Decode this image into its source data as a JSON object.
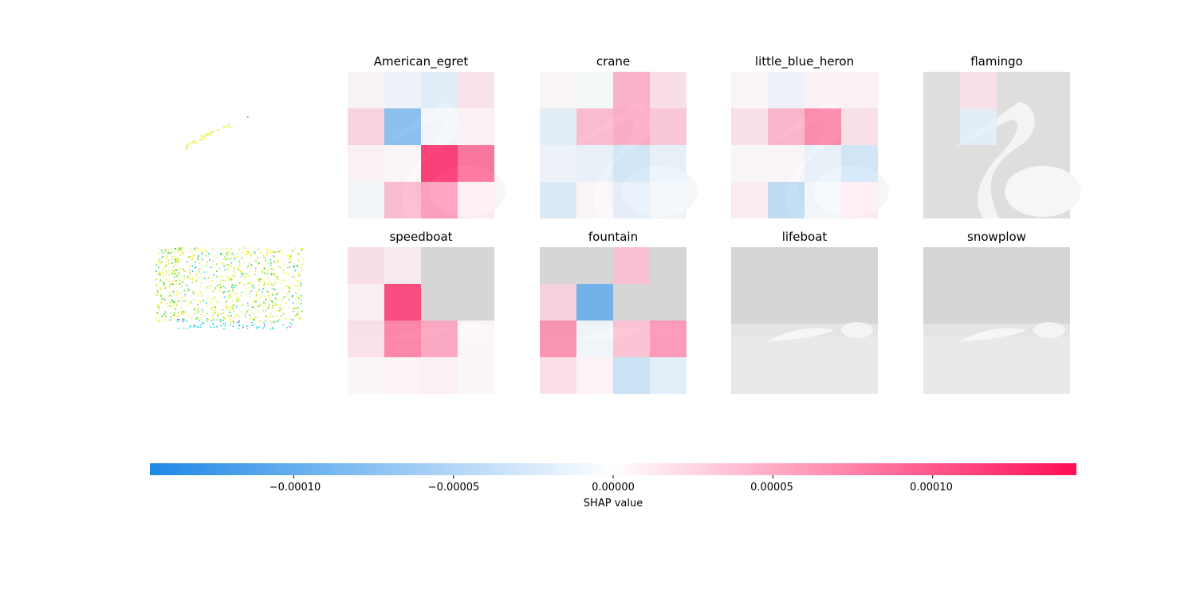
{
  "colors": {
    "negative": "#1E88E5",
    "positive": "#FF0D57",
    "neutral": "#FFFFFF",
    "background_image": "#DDDDDD"
  },
  "chart_data": {
    "type": "heatmap",
    "grid": [
      4,
      4
    ],
    "rows": [
      {
        "input_image": "egret",
        "panels": [
          {
            "title": "American_egret",
            "values": [
              [
                5e-06,
                -1e-05,
                -1.8e-05,
                1.6e-05
              ],
              [
                2.8e-05,
                -8.5e-05,
                -6e-06,
                6e-06
              ],
              [
                6e-06,
                3e-06,
                0.000135,
                9.5e-05
              ],
              [
                -6e-06,
                4.5e-05,
                6.5e-05,
                1e-05
              ]
            ]
          },
          {
            "title": "crane",
            "values": [
              [
                3e-06,
                -4e-06,
                5.2e-05,
                2e-05
              ],
              [
                -1.8e-05,
                4.5e-05,
                5.5e-05,
                3.6e-05
              ],
              [
                -1e-05,
                -1.4e-05,
                -3e-05,
                -1.4e-05
              ],
              [
                -2.3e-05,
                3e-06,
                -1.6e-05,
                -8e-06
              ]
            ]
          },
          {
            "title": "little_blue_heron",
            "values": [
              [
                3e-06,
                -1e-05,
                6e-06,
                6e-06
              ],
              [
                1.8e-05,
                5e-05,
                8e-05,
                1.8e-05
              ],
              [
                3e-06,
                3e-06,
                -1.4e-05,
                -3e-05
              ],
              [
                1e-05,
                -4.5e-05,
                -6e-06,
                1e-05
              ]
            ]
          },
          {
            "title": "flamingo",
            "values": [
              [
                0.0,
                1.8e-05,
                0.0,
                0.0
              ],
              [
                0.0,
                -1.8e-05,
                0.0,
                0.0
              ],
              [
                0.0,
                0.0,
                0.0,
                0.0
              ],
              [
                0.0,
                0.0,
                0.0,
                0.0
              ]
            ]
          }
        ]
      },
      {
        "input_image": "speedboat",
        "panels": [
          {
            "title": "speedboat",
            "values": [
              [
                1.8e-05,
                1e-05,
                0.0,
                0.0
              ],
              [
                6e-06,
                0.000125,
                0.0,
                0.0
              ],
              [
                1.8e-05,
                8.5e-05,
                6e-05,
                3e-06
              ],
              [
                3e-06,
                6e-06,
                8e-06,
                3e-06
              ]
            ]
          },
          {
            "title": "fountain",
            "values": [
              [
                0.0,
                0.0,
                4e-05,
                0.0
              ],
              [
                2.8e-05,
                -0.000105,
                0.0,
                0.0
              ],
              [
                7.5e-05,
                -8e-06,
                4e-05,
                7e-05
              ],
              [
                2e-05,
                6e-06,
                -3.8e-05,
                -2e-05
              ]
            ]
          },
          {
            "title": "lifeboat",
            "values": [
              [
                0,
                0,
                0,
                0
              ],
              [
                0,
                0,
                0,
                0
              ],
              [
                0,
                0,
                0,
                0
              ],
              [
                0,
                0,
                0,
                0
              ]
            ]
          },
          {
            "title": "snowplow",
            "values": [
              [
                0,
                0,
                0,
                0
              ],
              [
                0,
                0,
                0,
                0
              ],
              [
                0,
                0,
                0,
                0
              ],
              [
                0,
                0,
                0,
                0
              ]
            ]
          }
        ]
      }
    ],
    "colorbar": {
      "xlabel": "SHAP value",
      "range": [
        -0.000145,
        0.000145
      ],
      "ticks": [
        -0.0001,
        -5e-05,
        0,
        5e-05,
        0.0001
      ],
      "tick_labels": [
        "−0.00010",
        "−0.00005",
        "0.00000",
        "0.00005",
        "0.00010"
      ]
    }
  }
}
